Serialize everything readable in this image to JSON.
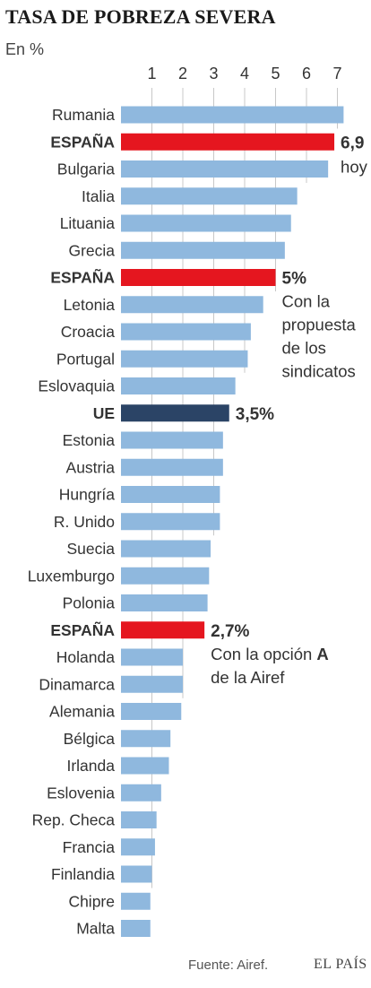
{
  "chart_data": {
    "type": "bar",
    "orientation": "horizontal",
    "title": "TASA DE POBREZA SEVERA",
    "unit_label": "En %",
    "x_ticks": [
      1,
      2,
      3,
      4,
      5,
      6,
      7
    ],
    "xlim": [
      0,
      7.4
    ],
    "grid": true,
    "categories": [
      "Rumania",
      "ESPAÑA",
      "Bulgaria",
      "Italia",
      "Lituania",
      "Grecia",
      "ESPAÑA",
      "Letonia",
      "Croacia",
      "Portugal",
      "Eslovaquia",
      "UE",
      "Estonia",
      "Austria",
      "Hungría",
      "R. Unido",
      "Suecia",
      "Luxemburgo",
      "Polonia",
      "ESPAÑA",
      "Holanda",
      "Dinamarca",
      "Alemania",
      "Bélgica",
      "Irlanda",
      "Eslovenia",
      "Rep. Checa",
      "Francia",
      "Finlandia",
      "Chipre",
      "Malta"
    ],
    "values": [
      7.2,
      6.9,
      6.7,
      5.7,
      5.5,
      5.3,
      5.0,
      4.6,
      4.2,
      4.1,
      3.7,
      3.5,
      3.3,
      3.3,
      3.2,
      3.2,
      2.9,
      2.85,
      2.8,
      2.7,
      2.0,
      2.0,
      1.95,
      1.6,
      1.55,
      1.3,
      1.15,
      1.1,
      1.0,
      0.95,
      0.95
    ],
    "highlight": [
      "normal",
      "spain",
      "normal",
      "normal",
      "normal",
      "normal",
      "spain",
      "normal",
      "normal",
      "normal",
      "normal",
      "eu",
      "normal",
      "normal",
      "normal",
      "normal",
      "normal",
      "normal",
      "normal",
      "spain",
      "normal",
      "normal",
      "normal",
      "normal",
      "normal",
      "normal",
      "normal",
      "normal",
      "normal",
      "normal",
      "normal"
    ],
    "colors": {
      "normal": "#8fb8de",
      "spain": "#e5161f",
      "eu": "#2b4466",
      "grid": "#c8c8c8",
      "label": "#333333",
      "value": "#333333"
    },
    "annotations": [
      {
        "index": 1,
        "value_text": "6,9",
        "lines": [
          "hoy"
        ]
      },
      {
        "index": 6,
        "value_text": "5%",
        "lines": [
          "Con la",
          "propuesta",
          "de los",
          "sindicatos"
        ]
      },
      {
        "index": 11,
        "value_text": "3,5%",
        "lines": []
      },
      {
        "index": 19,
        "value_text": "2,7%",
        "lines": [
          "Con la opción A",
          "de la Airef"
        ]
      }
    ]
  },
  "footer": {
    "source": "Fuente: Airef.",
    "brand": "EL PAÍS"
  }
}
